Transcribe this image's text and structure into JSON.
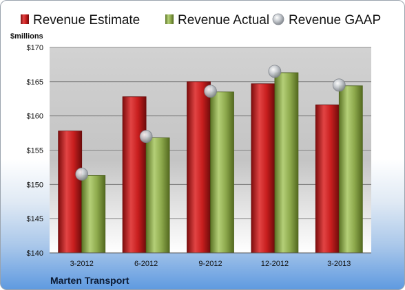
{
  "chart_data": {
    "type": "bar",
    "categories": [
      "3-2012",
      "6-2012",
      "9-2012",
      "12-2012",
      "3-2013"
    ],
    "series": [
      {
        "name": "Revenue Estimate",
        "values": [
          157.8,
          162.8,
          165.0,
          164.7,
          161.6
        ],
        "color": "#cc1f1f"
      },
      {
        "name": "Revenue Actual",
        "values": [
          151.3,
          156.8,
          163.5,
          166.3,
          164.4
        ],
        "color": "#8aa64a"
      }
    ],
    "points": {
      "name": "Revenue GAAP",
      "values": [
        151.5,
        157.0,
        163.6,
        166.5,
        164.5
      ],
      "color": "#b8bcc2"
    },
    "ylabel": "$millions",
    "ylim": [
      140,
      170
    ],
    "yticks": [
      "$140",
      "$145",
      "$150",
      "$155",
      "$160",
      "$165",
      "$170"
    ],
    "grid": true,
    "legend_position": "top"
  },
  "footer": {
    "company": "Marten Transport"
  }
}
